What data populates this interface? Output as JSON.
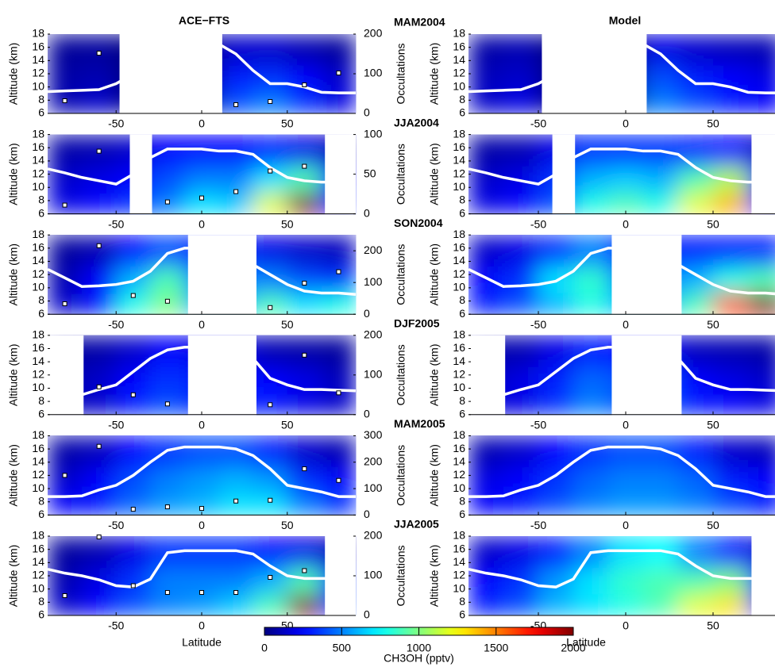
{
  "chart_data": {
    "type": "heatmap",
    "columns": [
      "ACE−FTS",
      "Model"
    ],
    "xlabel": "Latitude",
    "ylabel": "Altitude (km)",
    "y2label": "Occultations",
    "xlim": [
      -90,
      90
    ],
    "xticks": [
      -50,
      0,
      50
    ],
    "ylim": [
      6,
      18
    ],
    "yticks": [
      6,
      8,
      10,
      12,
      14,
      16,
      18
    ],
    "lat_bins": [
      -80,
      -60,
      -40,
      -20,
      0,
      20,
      40,
      60,
      80
    ],
    "alt_levels": [
      7.5,
      11,
      15.5
    ],
    "tropopause_lat": [
      -90,
      -80,
      -70,
      -60,
      -50,
      -40,
      -30,
      -20,
      -10,
      0,
      10,
      20,
      30,
      40,
      50,
      60,
      70,
      80,
      90
    ],
    "colorbar": {
      "label": "CH3OH (pptv)",
      "lim": [
        0,
        2000
      ],
      "ticks": [
        0,
        500,
        1000,
        1500,
        2000
      ]
    },
    "panels": [
      {
        "season": "MAM2004",
        "y2lim": [
          0,
          200
        ],
        "y2ticks": [
          0,
          100,
          200
        ],
        "gaps": [
          [
            -48,
            12
          ]
        ],
        "tropopause": [
          9.3,
          9.4,
          9.5,
          9.6,
          10.5,
          12,
          14,
          15.5,
          16,
          16.3,
          16.5,
          15,
          12.5,
          10.5,
          10.5,
          10,
          9.2,
          9.1,
          9.1
        ],
        "occultations": {
          "lat": [
            -80,
            -60,
            20,
            40,
            60,
            80
          ],
          "values": [
            32,
            152,
            22,
            30,
            72,
            102
          ]
        },
        "ace": [
          [
            100,
            150,
            null,
            null,
            null,
            400,
            500,
            350,
            200
          ],
          [
            80,
            100,
            null,
            null,
            null,
            300,
            350,
            250,
            150
          ],
          [
            50,
            60,
            null,
            null,
            null,
            150,
            150,
            100,
            60
          ]
        ],
        "model": [
          [
            150,
            200,
            null,
            null,
            null,
            500,
            400,
            300,
            250
          ],
          [
            120,
            150,
            null,
            null,
            null,
            400,
            300,
            250,
            200
          ],
          [
            80,
            100,
            null,
            null,
            null,
            200,
            150,
            120,
            100
          ]
        ]
      },
      {
        "season": "JJA2004",
        "y2lim": [
          0,
          100
        ],
        "y2ticks": [
          0,
          50,
          100
        ],
        "gaps": [
          [
            -42,
            -29
          ],
          [
            72,
            90
          ]
        ],
        "tropopause": [
          12.8,
          12.2,
          11.5,
          11,
          10.5,
          12,
          14.5,
          15.8,
          15.8,
          15.8,
          15.5,
          15.5,
          15,
          13,
          11.5,
          11,
          10.8,
          10.8,
          10.8
        ],
        "occultations": {
          "lat": [
            -80,
            -60,
            -20,
            0,
            20,
            40,
            60
          ],
          "values": [
            11,
            79,
            15,
            20,
            28,
            54,
            60
          ]
        },
        "ace": [
          [
            200,
            250,
            350,
            500,
            700,
            650,
            1200,
            2000,
            300
          ],
          [
            150,
            200,
            250,
            400,
            500,
            500,
            700,
            900,
            250
          ],
          [
            80,
            100,
            150,
            250,
            250,
            250,
            300,
            200,
            100
          ]
        ],
        "model": [
          [
            200,
            250,
            400,
            800,
            900,
            800,
            1200,
            1400,
            300
          ],
          [
            150,
            200,
            350,
            600,
            650,
            600,
            900,
            1100,
            300
          ],
          [
            80,
            100,
            200,
            350,
            350,
            350,
            300,
            250,
            100
          ]
        ]
      },
      {
        "season": "SON2004",
        "y2lim": [
          0,
          250
        ],
        "y2ticks": [
          0,
          100,
          200
        ],
        "gaps": [
          [
            -8,
            32
          ]
        ],
        "tropopause": [
          12.8,
          11.5,
          10.2,
          10.3,
          10.5,
          11,
          12.5,
          15.2,
          16,
          16,
          16,
          15.5,
          13.5,
          12,
          10.5,
          9.5,
          9.2,
          9.2,
          9
        ],
        "occultations": {
          "lat": [
            -80,
            -60,
            -40,
            -20,
            40,
            60,
            80
          ],
          "values": [
            33,
            216,
            59,
            41,
            21,
            98,
            134
          ]
        },
        "ace": [
          [
            150,
            300,
            800,
            1000,
            600,
            600,
            900,
            700,
            800
          ],
          [
            100,
            250,
            600,
            900,
            500,
            500,
            500,
            400,
            350
          ],
          [
            60,
            100,
            250,
            400,
            300,
            300,
            200,
            150,
            120
          ]
        ],
        "model": [
          [
            300,
            400,
            600,
            800,
            600,
            600,
            900,
            1600,
            2000
          ],
          [
            250,
            350,
            700,
            850,
            500,
            500,
            600,
            800,
            900
          ],
          [
            150,
            200,
            350,
            500,
            300,
            300,
            300,
            300,
            300
          ]
        ]
      },
      {
        "season": "DJF2005",
        "y2lim": [
          0,
          200
        ],
        "y2ticks": [
          0,
          100,
          200
        ],
        "gaps": [
          [
            -90,
            -69
          ],
          [
            -8,
            32
          ]
        ],
        "tropopause": [
          9,
          9,
          9,
          9.8,
          10.5,
          12.5,
          14.5,
          15.8,
          16.2,
          16.2,
          16.2,
          16,
          14.5,
          11.5,
          10.5,
          9.8,
          9.8,
          9.7,
          9.6
        ],
        "occultations": {
          "lat": [
            -60,
            -40,
            -20,
            40,
            60,
            80
          ],
          "values": [
            70,
            50,
            27,
            25,
            150,
            55
          ]
        },
        "ace": [
          [
            100,
            150,
            300,
            400,
            300,
            300,
            300,
            200,
            150
          ],
          [
            80,
            150,
            250,
            350,
            300,
            300,
            250,
            200,
            120
          ],
          [
            60,
            80,
            150,
            250,
            200,
            200,
            100,
            80,
            60
          ]
        ],
        "model": [
          [
            150,
            200,
            350,
            500,
            400,
            400,
            300,
            250,
            200
          ],
          [
            120,
            200,
            300,
            450,
            400,
            400,
            250,
            200,
            150
          ],
          [
            80,
            100,
            200,
            300,
            250,
            250,
            120,
            100,
            80
          ]
        ]
      },
      {
        "season": "MAM2005",
        "y2lim": [
          0,
          300
        ],
        "y2ticks": [
          0,
          100,
          200,
          300
        ],
        "gaps": [],
        "tropopause": [
          8.8,
          8.8,
          8.9,
          9.8,
          10.5,
          12,
          14,
          15.8,
          16.3,
          16.3,
          16.3,
          16,
          15,
          13,
          10.5,
          10,
          9.5,
          8.8,
          8.8
        ],
        "occultations": {
          "lat": [
            -80,
            -60,
            -40,
            -20,
            0,
            20,
            40,
            60,
            80
          ],
          "values": [
            150,
            260,
            22,
            31,
            25,
            53,
            56,
            175,
            131
          ]
        },
        "ace": [
          [
            250,
            300,
            450,
            550,
            600,
            700,
            700,
            500,
            350
          ],
          [
            150,
            250,
            400,
            500,
            550,
            600,
            550,
            350,
            250
          ],
          [
            80,
            120,
            250,
            350,
            400,
            400,
            300,
            150,
            100
          ]
        ],
        "model": [
          [
            250,
            300,
            400,
            500,
            550,
            550,
            500,
            400,
            300
          ],
          [
            200,
            250,
            350,
            450,
            500,
            500,
            450,
            300,
            250
          ],
          [
            100,
            150,
            250,
            350,
            400,
            400,
            300,
            150,
            120
          ]
        ]
      },
      {
        "season": "JJA2005",
        "y2lim": [
          0,
          200
        ],
        "y2ticks": [
          0,
          100,
          200
        ],
        "gaps": [
          [
            72,
            90
          ]
        ],
        "tropopause": [
          13,
          12.4,
          12,
          11.4,
          10.5,
          10.3,
          11.5,
          15.5,
          15.8,
          15.8,
          15.8,
          15.8,
          15.3,
          13.5,
          12,
          11.6,
          11.6,
          11.6,
          11.6
        ],
        "occultations": {
          "lat": [
            -80,
            -60,
            -40,
            -20,
            0,
            20,
            40,
            60
          ],
          "values": [
            50,
            198,
            75,
            58,
            58,
            58,
            96,
            113
          ]
        },
        "ace": [
          [
            150,
            250,
            400,
            500,
            550,
            650,
            900,
            2000,
            400
          ],
          [
            100,
            200,
            350,
            500,
            500,
            500,
            600,
            900,
            300
          ],
          [
            60,
            100,
            200,
            350,
            350,
            350,
            250,
            200,
            100
          ]
        ],
        "model": [
          [
            300,
            400,
            600,
            700,
            800,
            900,
            1200,
            1300,
            300
          ],
          [
            250,
            350,
            550,
            700,
            850,
            900,
            900,
            1000,
            300
          ],
          [
            150,
            200,
            300,
            500,
            700,
            750,
            500,
            300,
            150
          ]
        ]
      }
    ]
  }
}
